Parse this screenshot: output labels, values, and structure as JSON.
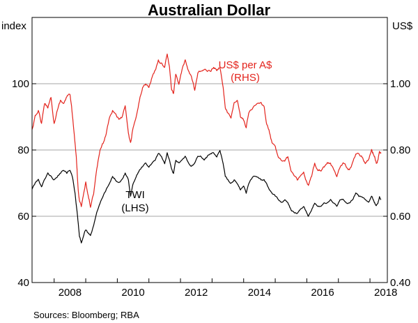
{
  "chart_data": {
    "type": "line",
    "title": "Australian Dollar",
    "left_axis": {
      "unit": "index",
      "min": 40,
      "max": 120,
      "ticks": [
        "40",
        "60",
        "80",
        "100"
      ]
    },
    "right_axis": {
      "unit": "US$",
      "min": 0.4,
      "max": 1.2,
      "ticks": [
        "0.40",
        "0.60",
        "0.80",
        "1.00"
      ]
    },
    "x_axis": {
      "min": 2007.3,
      "max": 2018.55,
      "ticks": [
        "2008",
        "2010",
        "2012",
        "2014",
        "2016",
        "2018"
      ]
    },
    "grid": true,
    "series": [
      {
        "name": "US$ per A$",
        "sublabel": "(RHS)",
        "axis": "right",
        "color": "#e3231c",
        "points": [
          [
            2007.3,
            0.86
          ],
          [
            2007.4,
            0.9
          ],
          [
            2007.5,
            0.92
          ],
          [
            2007.6,
            0.88
          ],
          [
            2007.7,
            0.94
          ],
          [
            2007.8,
            0.93
          ],
          [
            2007.9,
            0.96
          ],
          [
            2008.0,
            0.88
          ],
          [
            2008.1,
            0.92
          ],
          [
            2008.2,
            0.95
          ],
          [
            2008.3,
            0.94
          ],
          [
            2008.4,
            0.96
          ],
          [
            2008.5,
            0.97
          ],
          [
            2008.55,
            0.93
          ],
          [
            2008.62,
            0.86
          ],
          [
            2008.7,
            0.78
          ],
          [
            2008.76,
            0.68
          ],
          [
            2008.8,
            0.65
          ],
          [
            2008.86,
            0.63
          ],
          [
            2008.92,
            0.66
          ],
          [
            2009.0,
            0.7
          ],
          [
            2009.08,
            0.66
          ],
          [
            2009.15,
            0.63
          ],
          [
            2009.25,
            0.67
          ],
          [
            2009.35,
            0.74
          ],
          [
            2009.45,
            0.8
          ],
          [
            2009.55,
            0.82
          ],
          [
            2009.65,
            0.85
          ],
          [
            2009.75,
            0.9
          ],
          [
            2009.85,
            0.92
          ],
          [
            2009.95,
            0.91
          ],
          [
            2010.05,
            0.89
          ],
          [
            2010.15,
            0.9
          ],
          [
            2010.25,
            0.93
          ],
          [
            2010.35,
            0.85
          ],
          [
            2010.42,
            0.82
          ],
          [
            2010.5,
            0.87
          ],
          [
            2010.6,
            0.9
          ],
          [
            2010.7,
            0.95
          ],
          [
            2010.8,
            0.99
          ],
          [
            2010.9,
            1.0
          ],
          [
            2011.0,
            0.99
          ],
          [
            2011.1,
            1.02
          ],
          [
            2011.2,
            1.04
          ],
          [
            2011.3,
            1.07
          ],
          [
            2011.4,
            1.06
          ],
          [
            2011.5,
            1.05
          ],
          [
            2011.58,
            1.09
          ],
          [
            2011.65,
            1.05
          ],
          [
            2011.72,
            0.98
          ],
          [
            2011.78,
            0.97
          ],
          [
            2011.85,
            1.03
          ],
          [
            2011.95,
            1.0
          ],
          [
            2012.05,
            1.04
          ],
          [
            2012.15,
            1.07
          ],
          [
            2012.25,
            1.04
          ],
          [
            2012.35,
            1.02
          ],
          [
            2012.45,
            0.98
          ],
          [
            2012.55,
            1.03
          ],
          [
            2012.65,
            1.04
          ],
          [
            2012.75,
            1.04
          ],
          [
            2012.85,
            1.04
          ],
          [
            2012.95,
            1.04
          ],
          [
            2013.05,
            1.05
          ],
          [
            2013.15,
            1.04
          ],
          [
            2013.25,
            1.05
          ],
          [
            2013.35,
            0.99
          ],
          [
            2013.42,
            0.93
          ],
          [
            2013.5,
            0.91
          ],
          [
            2013.6,
            0.9
          ],
          [
            2013.7,
            0.94
          ],
          [
            2013.8,
            0.95
          ],
          [
            2013.9,
            0.9
          ],
          [
            2014.0,
            0.89
          ],
          [
            2014.08,
            0.87
          ],
          [
            2014.16,
            0.91
          ],
          [
            2014.3,
            0.93
          ],
          [
            2014.45,
            0.94
          ],
          [
            2014.55,
            0.94
          ],
          [
            2014.65,
            0.93
          ],
          [
            2014.72,
            0.88
          ],
          [
            2014.8,
            0.86
          ],
          [
            2014.9,
            0.82
          ],
          [
            2015.0,
            0.81
          ],
          [
            2015.1,
            0.78
          ],
          [
            2015.2,
            0.77
          ],
          [
            2015.3,
            0.77
          ],
          [
            2015.4,
            0.78
          ],
          [
            2015.5,
            0.74
          ],
          [
            2015.6,
            0.72
          ],
          [
            2015.7,
            0.71
          ],
          [
            2015.8,
            0.72
          ],
          [
            2015.9,
            0.73
          ],
          [
            2016.0,
            0.7
          ],
          [
            2016.05,
            0.69
          ],
          [
            2016.15,
            0.72
          ],
          [
            2016.25,
            0.76
          ],
          [
            2016.35,
            0.74
          ],
          [
            2016.45,
            0.74
          ],
          [
            2016.55,
            0.75
          ],
          [
            2016.65,
            0.76
          ],
          [
            2016.75,
            0.76
          ],
          [
            2016.85,
            0.74
          ],
          [
            2016.95,
            0.72
          ],
          [
            2017.05,
            0.75
          ],
          [
            2017.15,
            0.76
          ],
          [
            2017.25,
            0.75
          ],
          [
            2017.35,
            0.74
          ],
          [
            2017.45,
            0.76
          ],
          [
            2017.55,
            0.79
          ],
          [
            2017.65,
            0.79
          ],
          [
            2017.75,
            0.78
          ],
          [
            2017.85,
            0.76
          ],
          [
            2017.95,
            0.77
          ],
          [
            2018.05,
            0.8
          ],
          [
            2018.1,
            0.79
          ],
          [
            2018.15,
            0.78
          ],
          [
            2018.2,
            0.76
          ],
          [
            2018.25,
            0.77
          ],
          [
            2018.3,
            0.8
          ],
          [
            2018.35,
            0.79
          ]
        ]
      },
      {
        "name": "TWI",
        "sublabel": "(LHS)",
        "axis": "left",
        "color": "#000000",
        "points": [
          [
            2007.3,
            68
          ],
          [
            2007.4,
            70
          ],
          [
            2007.5,
            71
          ],
          [
            2007.6,
            69
          ],
          [
            2007.7,
            71
          ],
          [
            2007.8,
            73
          ],
          [
            2007.9,
            72
          ],
          [
            2008.0,
            71
          ],
          [
            2008.1,
            72
          ],
          [
            2008.2,
            73
          ],
          [
            2008.3,
            74
          ],
          [
            2008.4,
            73
          ],
          [
            2008.5,
            74
          ],
          [
            2008.58,
            72
          ],
          [
            2008.66,
            67
          ],
          [
            2008.74,
            60
          ],
          [
            2008.8,
            54
          ],
          [
            2008.86,
            52
          ],
          [
            2008.92,
            54
          ],
          [
            2009.0,
            56
          ],
          [
            2009.08,
            55
          ],
          [
            2009.15,
            54
          ],
          [
            2009.25,
            57
          ],
          [
            2009.35,
            61
          ],
          [
            2009.45,
            64
          ],
          [
            2009.55,
            66
          ],
          [
            2009.65,
            68
          ],
          [
            2009.75,
            70
          ],
          [
            2009.85,
            72
          ],
          [
            2009.95,
            71
          ],
          [
            2010.05,
            70
          ],
          [
            2010.15,
            71
          ],
          [
            2010.25,
            73
          ],
          [
            2010.35,
            71
          ],
          [
            2010.42,
            66
          ],
          [
            2010.5,
            70
          ],
          [
            2010.6,
            72
          ],
          [
            2010.7,
            74
          ],
          [
            2010.8,
            75
          ],
          [
            2010.9,
            76
          ],
          [
            2011.0,
            75
          ],
          [
            2011.1,
            76
          ],
          [
            2011.2,
            77
          ],
          [
            2011.3,
            79
          ],
          [
            2011.4,
            78
          ],
          [
            2011.5,
            76
          ],
          [
            2011.58,
            79
          ],
          [
            2011.65,
            77
          ],
          [
            2011.72,
            74
          ],
          [
            2011.78,
            73
          ],
          [
            2011.85,
            77
          ],
          [
            2011.95,
            76
          ],
          [
            2012.05,
            77
          ],
          [
            2012.15,
            78
          ],
          [
            2012.25,
            76
          ],
          [
            2012.35,
            75
          ],
          [
            2012.45,
            76
          ],
          [
            2012.55,
            78
          ],
          [
            2012.65,
            78
          ],
          [
            2012.75,
            77
          ],
          [
            2012.85,
            78
          ],
          [
            2012.95,
            79
          ],
          [
            2013.05,
            79
          ],
          [
            2013.15,
            78
          ],
          [
            2013.25,
            80
          ],
          [
            2013.35,
            76
          ],
          [
            2013.42,
            72
          ],
          [
            2013.5,
            71
          ],
          [
            2013.6,
            70
          ],
          [
            2013.7,
            71
          ],
          [
            2013.8,
            70
          ],
          [
            2013.9,
            68
          ],
          [
            2014.0,
            69
          ],
          [
            2014.08,
            67
          ],
          [
            2014.16,
            70
          ],
          [
            2014.3,
            72
          ],
          [
            2014.45,
            72
          ],
          [
            2014.55,
            71
          ],
          [
            2014.65,
            71
          ],
          [
            2014.72,
            70
          ],
          [
            2014.8,
            68
          ],
          [
            2014.9,
            67
          ],
          [
            2015.0,
            66
          ],
          [
            2015.1,
            65
          ],
          [
            2015.2,
            64
          ],
          [
            2015.3,
            65
          ],
          [
            2015.4,
            64
          ],
          [
            2015.5,
            62
          ],
          [
            2015.6,
            61
          ],
          [
            2015.7,
            61
          ],
          [
            2015.8,
            62
          ],
          [
            2015.9,
            63
          ],
          [
            2016.0,
            61
          ],
          [
            2016.05,
            60
          ],
          [
            2016.15,
            62
          ],
          [
            2016.25,
            64
          ],
          [
            2016.35,
            63
          ],
          [
            2016.45,
            63
          ],
          [
            2016.55,
            64
          ],
          [
            2016.65,
            64
          ],
          [
            2016.75,
            65
          ],
          [
            2016.85,
            64
          ],
          [
            2016.95,
            63
          ],
          [
            2017.05,
            65
          ],
          [
            2017.15,
            65
          ],
          [
            2017.25,
            64
          ],
          [
            2017.35,
            64
          ],
          [
            2017.45,
            65
          ],
          [
            2017.55,
            67
          ],
          [
            2017.65,
            66
          ],
          [
            2017.75,
            66
          ],
          [
            2017.85,
            65
          ],
          [
            2017.95,
            64
          ],
          [
            2018.05,
            66
          ],
          [
            2018.1,
            65
          ],
          [
            2018.15,
            64
          ],
          [
            2018.2,
            63
          ],
          [
            2018.25,
            64
          ],
          [
            2018.3,
            66
          ],
          [
            2018.35,
            65
          ]
        ]
      }
    ],
    "source": "Sources: Bloomberg; RBA"
  }
}
